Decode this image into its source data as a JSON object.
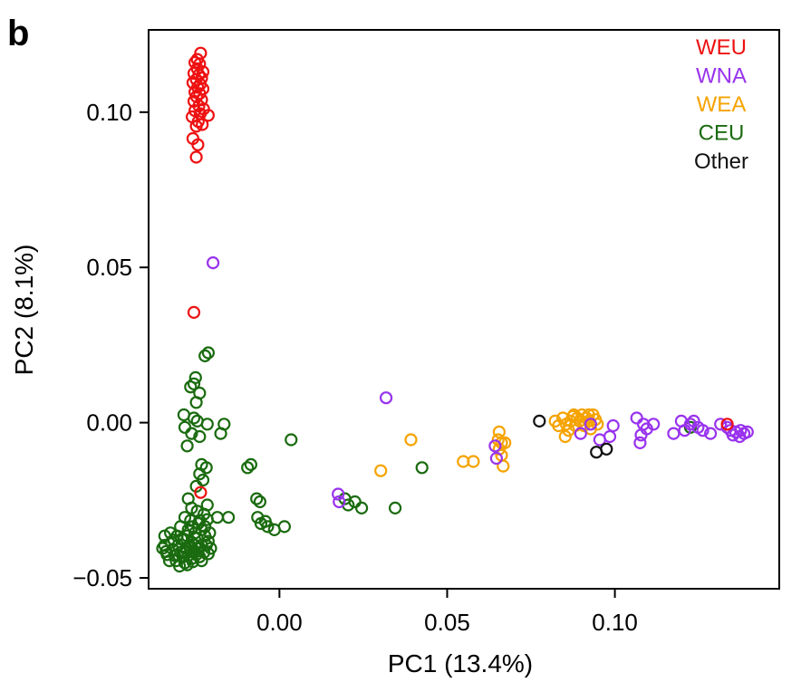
{
  "panel_label": "b",
  "chart_data": {
    "type": "scatter",
    "title": "",
    "xlabel": "PC1 (13.4%)",
    "ylabel": "PC2 (8.1%)",
    "xlim": [
      -0.039,
      0.149
    ],
    "ylim": [
      -0.0535,
      0.1265
    ],
    "xticks": [
      {
        "value": 0.0,
        "label": "0.00"
      },
      {
        "value": 0.05,
        "label": "0.05"
      },
      {
        "value": 0.1,
        "label": "0.10"
      }
    ],
    "yticks": [
      {
        "value": -0.05,
        "label": "−0.05"
      },
      {
        "value": 0.0,
        "label": "0.00"
      },
      {
        "value": 0.05,
        "label": "0.05"
      },
      {
        "value": 0.1,
        "label": "0.10"
      }
    ],
    "grid": false,
    "legend_position": "top-right",
    "marker": "open-circle",
    "series": [
      {
        "name": "WEU",
        "color": "#ee1111",
        "points": [
          [
            -0.0235,
            0.119
          ],
          [
            -0.0245,
            0.117
          ],
          [
            -0.0252,
            0.116
          ],
          [
            -0.0238,
            0.1155
          ],
          [
            -0.0245,
            0.114
          ],
          [
            -0.0228,
            0.113
          ],
          [
            -0.0255,
            0.1125
          ],
          [
            -0.024,
            0.112
          ],
          [
            -0.0232,
            0.111
          ],
          [
            -0.0248,
            0.1105
          ],
          [
            -0.0258,
            0.1095
          ],
          [
            -0.0236,
            0.109
          ],
          [
            -0.0244,
            0.108
          ],
          [
            -0.0228,
            0.1075
          ],
          [
            -0.0252,
            0.1065
          ],
          [
            -0.0238,
            0.106
          ],
          [
            -0.0247,
            0.105
          ],
          [
            -0.0232,
            0.104
          ],
          [
            -0.0255,
            0.1035
          ],
          [
            -0.024,
            0.102
          ],
          [
            -0.0226,
            0.101
          ],
          [
            -0.0252,
            0.1005
          ],
          [
            -0.0236,
            0.0995
          ],
          [
            -0.0212,
            0.099
          ],
          [
            -0.026,
            0.0985
          ],
          [
            -0.0242,
            0.097
          ],
          [
            -0.023,
            0.096
          ],
          [
            -0.0248,
            0.0955
          ],
          [
            -0.0258,
            0.0915
          ],
          [
            -0.0243,
            0.0895
          ],
          [
            -0.0248,
            0.0855
          ],
          [
            -0.0255,
            0.0355
          ],
          [
            -0.0235,
            -0.0225
          ],
          [
            0.1335,
            -0.0005
          ]
        ]
      },
      {
        "name": "WNA",
        "color": "#9933ee",
        "points": [
          [
            -0.0198,
            0.0515
          ],
          [
            0.0318,
            0.008
          ],
          [
            0.0175,
            -0.023
          ],
          [
            0.0178,
            -0.0255
          ],
          [
            0.0647,
            -0.0115
          ],
          [
            0.0643,
            -0.0075
          ],
          [
            0.0898,
            -0.0035
          ],
          [
            0.0928,
            -0.0005
          ],
          [
            0.0955,
            -0.0055
          ],
          [
            0.0985,
            -0.0045
          ],
          [
            0.0995,
            -0.001
          ],
          [
            0.1065,
            0.0015
          ],
          [
            0.1085,
            -0.0005
          ],
          [
            0.1078,
            -0.004
          ],
          [
            0.1075,
            -0.0065
          ],
          [
            0.1095,
            -0.002
          ],
          [
            0.1115,
            -0.0005
          ],
          [
            0.1175,
            -0.0035
          ],
          [
            0.1198,
            0.0005
          ],
          [
            0.1225,
            -0.0005
          ],
          [
            0.1208,
            -0.0025
          ],
          [
            0.1235,
            0.0005
          ],
          [
            0.1248,
            -0.0015
          ],
          [
            0.1262,
            -0.0025
          ],
          [
            0.1285,
            -0.0035
          ],
          [
            0.1315,
            -0.0005
          ],
          [
            0.1335,
            -0.0015
          ],
          [
            0.1345,
            -0.0025
          ],
          [
            0.136,
            -0.003
          ],
          [
            0.1375,
            -0.0025
          ],
          [
            0.1385,
            -0.0035
          ],
          [
            0.1395,
            -0.003
          ],
          [
            0.1372,
            -0.0045
          ],
          [
            0.1352,
            -0.004
          ]
        ]
      },
      {
        "name": "WEA",
        "color": "#f5a300",
        "points": [
          [
            0.0302,
            -0.0155
          ],
          [
            0.0392,
            -0.0055
          ],
          [
            0.0548,
            -0.0125
          ],
          [
            0.0578,
            -0.0125
          ],
          [
            0.0655,
            -0.003
          ],
          [
            0.0652,
            -0.0055
          ],
          [
            0.0662,
            -0.0065
          ],
          [
            0.0655,
            -0.0085
          ],
          [
            0.0672,
            -0.0065
          ],
          [
            0.0667,
            -0.014
          ],
          [
            0.0662,
            -0.0105
          ],
          [
            0.0822,
            0.0005
          ],
          [
            0.0832,
            -0.001
          ],
          [
            0.0845,
            0.0015
          ],
          [
            0.0855,
            -0.0005
          ],
          [
            0.0862,
            -0.0025
          ],
          [
            0.0868,
            0.0005
          ],
          [
            0.0875,
            0.002
          ],
          [
            0.0882,
            -0.001
          ],
          [
            0.0888,
            0.0015
          ],
          [
            0.0895,
            0.0005
          ],
          [
            0.0902,
            0.0025
          ],
          [
            0.0908,
            -0.001
          ],
          [
            0.0915,
            0.0015
          ],
          [
            0.0922,
            0.0005
          ],
          [
            0.0928,
            -0.002
          ],
          [
            0.0935,
            0.0025
          ],
          [
            0.0942,
            0.001
          ],
          [
            0.0948,
            -0.0005
          ],
          [
            0.0922,
            0.0025
          ],
          [
            0.0878,
            0.0025
          ],
          [
            0.0852,
            -0.0045
          ]
        ]
      },
      {
        "name": "CEU",
        "color": "#1a6b0f",
        "points": [
          [
            -0.0212,
            0.0225
          ],
          [
            -0.0222,
            0.0215
          ],
          [
            -0.025,
            0.0145
          ],
          [
            -0.0255,
            0.0125
          ],
          [
            -0.0265,
            0.0115
          ],
          [
            -0.0238,
            0.0095
          ],
          [
            -0.0248,
            0.0065
          ],
          [
            -0.0285,
            0.0025
          ],
          [
            -0.0255,
            0.0015
          ],
          [
            -0.0245,
            0.0005
          ],
          [
            -0.0215,
            -0.0005
          ],
          [
            -0.0282,
            -0.0015
          ],
          [
            -0.0262,
            -0.0035
          ],
          [
            -0.0238,
            -0.0045
          ],
          [
            -0.0275,
            -0.0075
          ],
          [
            -0.0165,
            -0.0005
          ],
          [
            -0.0175,
            -0.0035
          ],
          [
            -0.0085,
            -0.0135
          ],
          [
            -0.0095,
            -0.0145
          ],
          [
            -0.0068,
            -0.0245
          ],
          [
            -0.0058,
            -0.0255
          ],
          [
            0.0035,
            -0.0055
          ],
          [
            0.0425,
            -0.0145
          ],
          [
            -0.0232,
            -0.0135
          ],
          [
            -0.0218,
            -0.0145
          ],
          [
            -0.0238,
            -0.0165
          ],
          [
            -0.0228,
            -0.0185
          ],
          [
            -0.0248,
            -0.0205
          ],
          [
            -0.0272,
            -0.0245
          ],
          [
            -0.0215,
            -0.0265
          ],
          [
            -0.0262,
            -0.0275
          ],
          [
            -0.0245,
            -0.0285
          ],
          [
            -0.0185,
            -0.0305
          ],
          [
            -0.0225,
            -0.0295
          ],
          [
            -0.0282,
            -0.0305
          ],
          [
            -0.0265,
            -0.0315
          ],
          [
            -0.0242,
            -0.0325
          ],
          [
            -0.0295,
            -0.0335
          ],
          [
            -0.0272,
            -0.0345
          ],
          [
            -0.0252,
            -0.0355
          ],
          [
            -0.0232,
            -0.0345
          ],
          [
            -0.0305,
            -0.0365
          ],
          [
            -0.0285,
            -0.0375
          ],
          [
            -0.0262,
            -0.0385
          ],
          [
            -0.0245,
            -0.0372
          ],
          [
            -0.0222,
            -0.0365
          ],
          [
            -0.0322,
            -0.0385
          ],
          [
            -0.0302,
            -0.0395
          ],
          [
            -0.0278,
            -0.0405
          ],
          [
            -0.0255,
            -0.0412
          ],
          [
            -0.0232,
            -0.0395
          ],
          [
            -0.0212,
            -0.0382
          ],
          [
            -0.0342,
            -0.0395
          ],
          [
            -0.0318,
            -0.0408
          ],
          [
            -0.0295,
            -0.0418
          ],
          [
            -0.0272,
            -0.0428
          ],
          [
            -0.0248,
            -0.0425
          ],
          [
            -0.0225,
            -0.0418
          ],
          [
            -0.0338,
            -0.0415
          ],
          [
            -0.0312,
            -0.0428
          ],
          [
            -0.0288,
            -0.0432
          ],
          [
            -0.0262,
            -0.0438
          ],
          [
            -0.0238,
            -0.0432
          ],
          [
            -0.0212,
            -0.0422
          ],
          [
            -0.0342,
            -0.0365
          ],
          [
            -0.0325,
            -0.0355
          ],
          [
            -0.0348,
            -0.0405
          ],
          [
            -0.0335,
            -0.0425
          ],
          [
            -0.0308,
            -0.0445
          ],
          [
            -0.0282,
            -0.0452
          ],
          [
            -0.0258,
            -0.0448
          ],
          [
            -0.0232,
            -0.0445
          ],
          [
            -0.0298,
            -0.0462
          ],
          [
            -0.0275,
            -0.0458
          ],
          [
            -0.0252,
            -0.0395
          ],
          [
            -0.0268,
            -0.0395
          ],
          [
            -0.0292,
            -0.0375
          ],
          [
            -0.0315,
            -0.0378
          ],
          [
            -0.0275,
            -0.0365
          ],
          [
            -0.0258,
            -0.0335
          ],
          [
            -0.0238,
            -0.0315
          ],
          [
            -0.0222,
            -0.0335
          ],
          [
            -0.0208,
            -0.0355
          ],
          [
            -0.0205,
            -0.0405
          ],
          [
            -0.0328,
            -0.0445
          ],
          [
            -0.0305,
            -0.0425
          ],
          [
            -0.0282,
            -0.0418
          ],
          [
            -0.0265,
            -0.0405
          ],
          [
            -0.0242,
            -0.0405
          ],
          [
            -0.0218,
            -0.0395
          ],
          [
            -0.0215,
            -0.0312
          ],
          [
            -0.0152,
            -0.0305
          ],
          [
            -0.0065,
            -0.0305
          ],
          [
            -0.0055,
            -0.0325
          ],
          [
            -0.0035,
            -0.0335
          ],
          [
            -0.0015,
            -0.0345
          ],
          [
            0.0015,
            -0.0335
          ],
          [
            -0.0042,
            -0.0318
          ],
          [
            0.0195,
            -0.0245
          ],
          [
            0.0225,
            -0.0255
          ],
          [
            0.0245,
            -0.0275
          ],
          [
            0.0205,
            -0.0265
          ],
          [
            0.0345,
            -0.0275
          ],
          [
            0.1225,
            -0.0015
          ]
        ]
      },
      {
        "name": "Other",
        "color": "#111111",
        "points": [
          [
            0.0775,
            0.0005
          ],
          [
            0.0945,
            -0.0095
          ],
          [
            0.0975,
            -0.0085
          ]
        ]
      }
    ]
  }
}
